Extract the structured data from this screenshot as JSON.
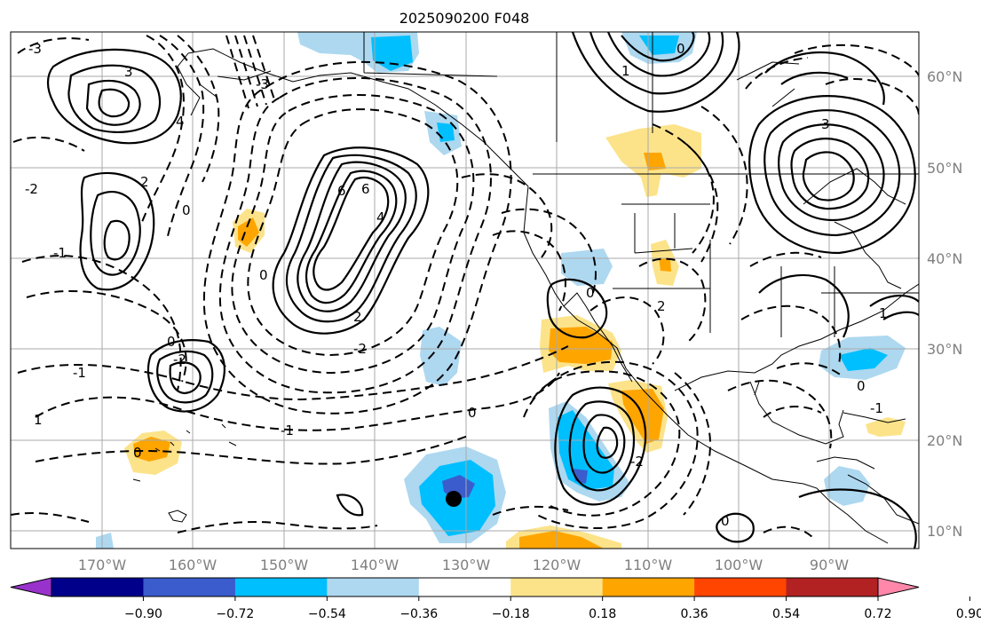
{
  "title": "2025090200 F048",
  "lat_labels": [
    "60°N",
    "50°N",
    "40°N",
    "30°N",
    "20°N",
    "10°N"
  ],
  "lon_labels": [
    "170°W",
    "160°W",
    "150°W",
    "140°W",
    "130°W",
    "120°W",
    "110°W",
    "100°W",
    "90°W"
  ],
  "colorbar": {
    "colors": [
      "#9932cc",
      "#00008b",
      "#3a5ccc",
      "#00bfff",
      "#add8f0",
      "#ffffff",
      "#fce38a",
      "#ffa500",
      "#ff4500",
      "#b22222",
      "#ff88aa"
    ],
    "ticks": [
      "−0.90",
      "−0.72",
      "−0.54",
      "−0.36",
      "−0.18",
      "0.18",
      "0.36",
      "0.54",
      "0.72",
      "0.90"
    ]
  },
  "contour_labels": [
    "-3",
    "-1",
    "-2",
    "0",
    "1",
    "2",
    "3",
    "4",
    "6",
    "-1",
    "0",
    "-2",
    "-3",
    "0",
    "4",
    "6",
    "2",
    "0",
    "-2",
    "-1",
    "0",
    "-2",
    "2",
    "3",
    "1",
    "0",
    "1",
    "0",
    "-1",
    "0",
    "0"
  ],
  "storm_marker": "analysis-center"
}
